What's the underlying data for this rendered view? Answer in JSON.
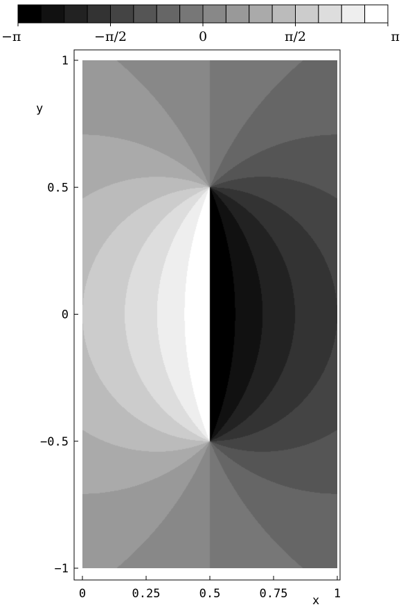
{
  "chart_data": {
    "type": "heatmap",
    "title": "",
    "xlabel": "x",
    "ylabel": "y",
    "xlim": [
      0,
      1
    ],
    "ylim": [
      -1,
      1
    ],
    "x_ticks": [
      {
        "value": 0,
        "label": "0"
      },
      {
        "value": 0.25,
        "label": "0.25"
      },
      {
        "value": 0.5,
        "label": "0.5"
      },
      {
        "value": 0.75,
        "label": "0.75"
      },
      {
        "value": 1,
        "label": "1"
      }
    ],
    "y_ticks": [
      {
        "value": 1,
        "label": "1"
      },
      {
        "value": 0.5,
        "label": "0.5"
      },
      {
        "value": 0,
        "label": "0"
      },
      {
        "value": -0.5,
        "label": "-0.5"
      },
      {
        "value": -1,
        "label": "-1"
      }
    ],
    "quantity": "phase",
    "singularities": [
      {
        "x": 0.5,
        "y": 0.5
      },
      {
        "x": 0.5,
        "y": -0.5
      }
    ],
    "colorbar": {
      "range": [
        -3.14159,
        3.14159
      ],
      "levels": 16,
      "colors": [
        "#000000",
        "#111111",
        "#222222",
        "#333333",
        "#444444",
        "#555555",
        "#666666",
        "#777777",
        "#888888",
        "#999999",
        "#aaaaaa",
        "#bbbbbb",
        "#cccccc",
        "#dddddd",
        "#eeeeee",
        "#ffffff"
      ],
      "ticks": [
        {
          "value": -3.14159,
          "label": "−π"
        },
        {
          "value": -1.5708,
          "label": "−π/2"
        },
        {
          "value": 0,
          "label": "0"
        },
        {
          "value": 1.5708,
          "label": "π/2"
        },
        {
          "value": 3.14159,
          "label": "π"
        }
      ]
    },
    "grid": false,
    "legend": "colorbar-top"
  }
}
